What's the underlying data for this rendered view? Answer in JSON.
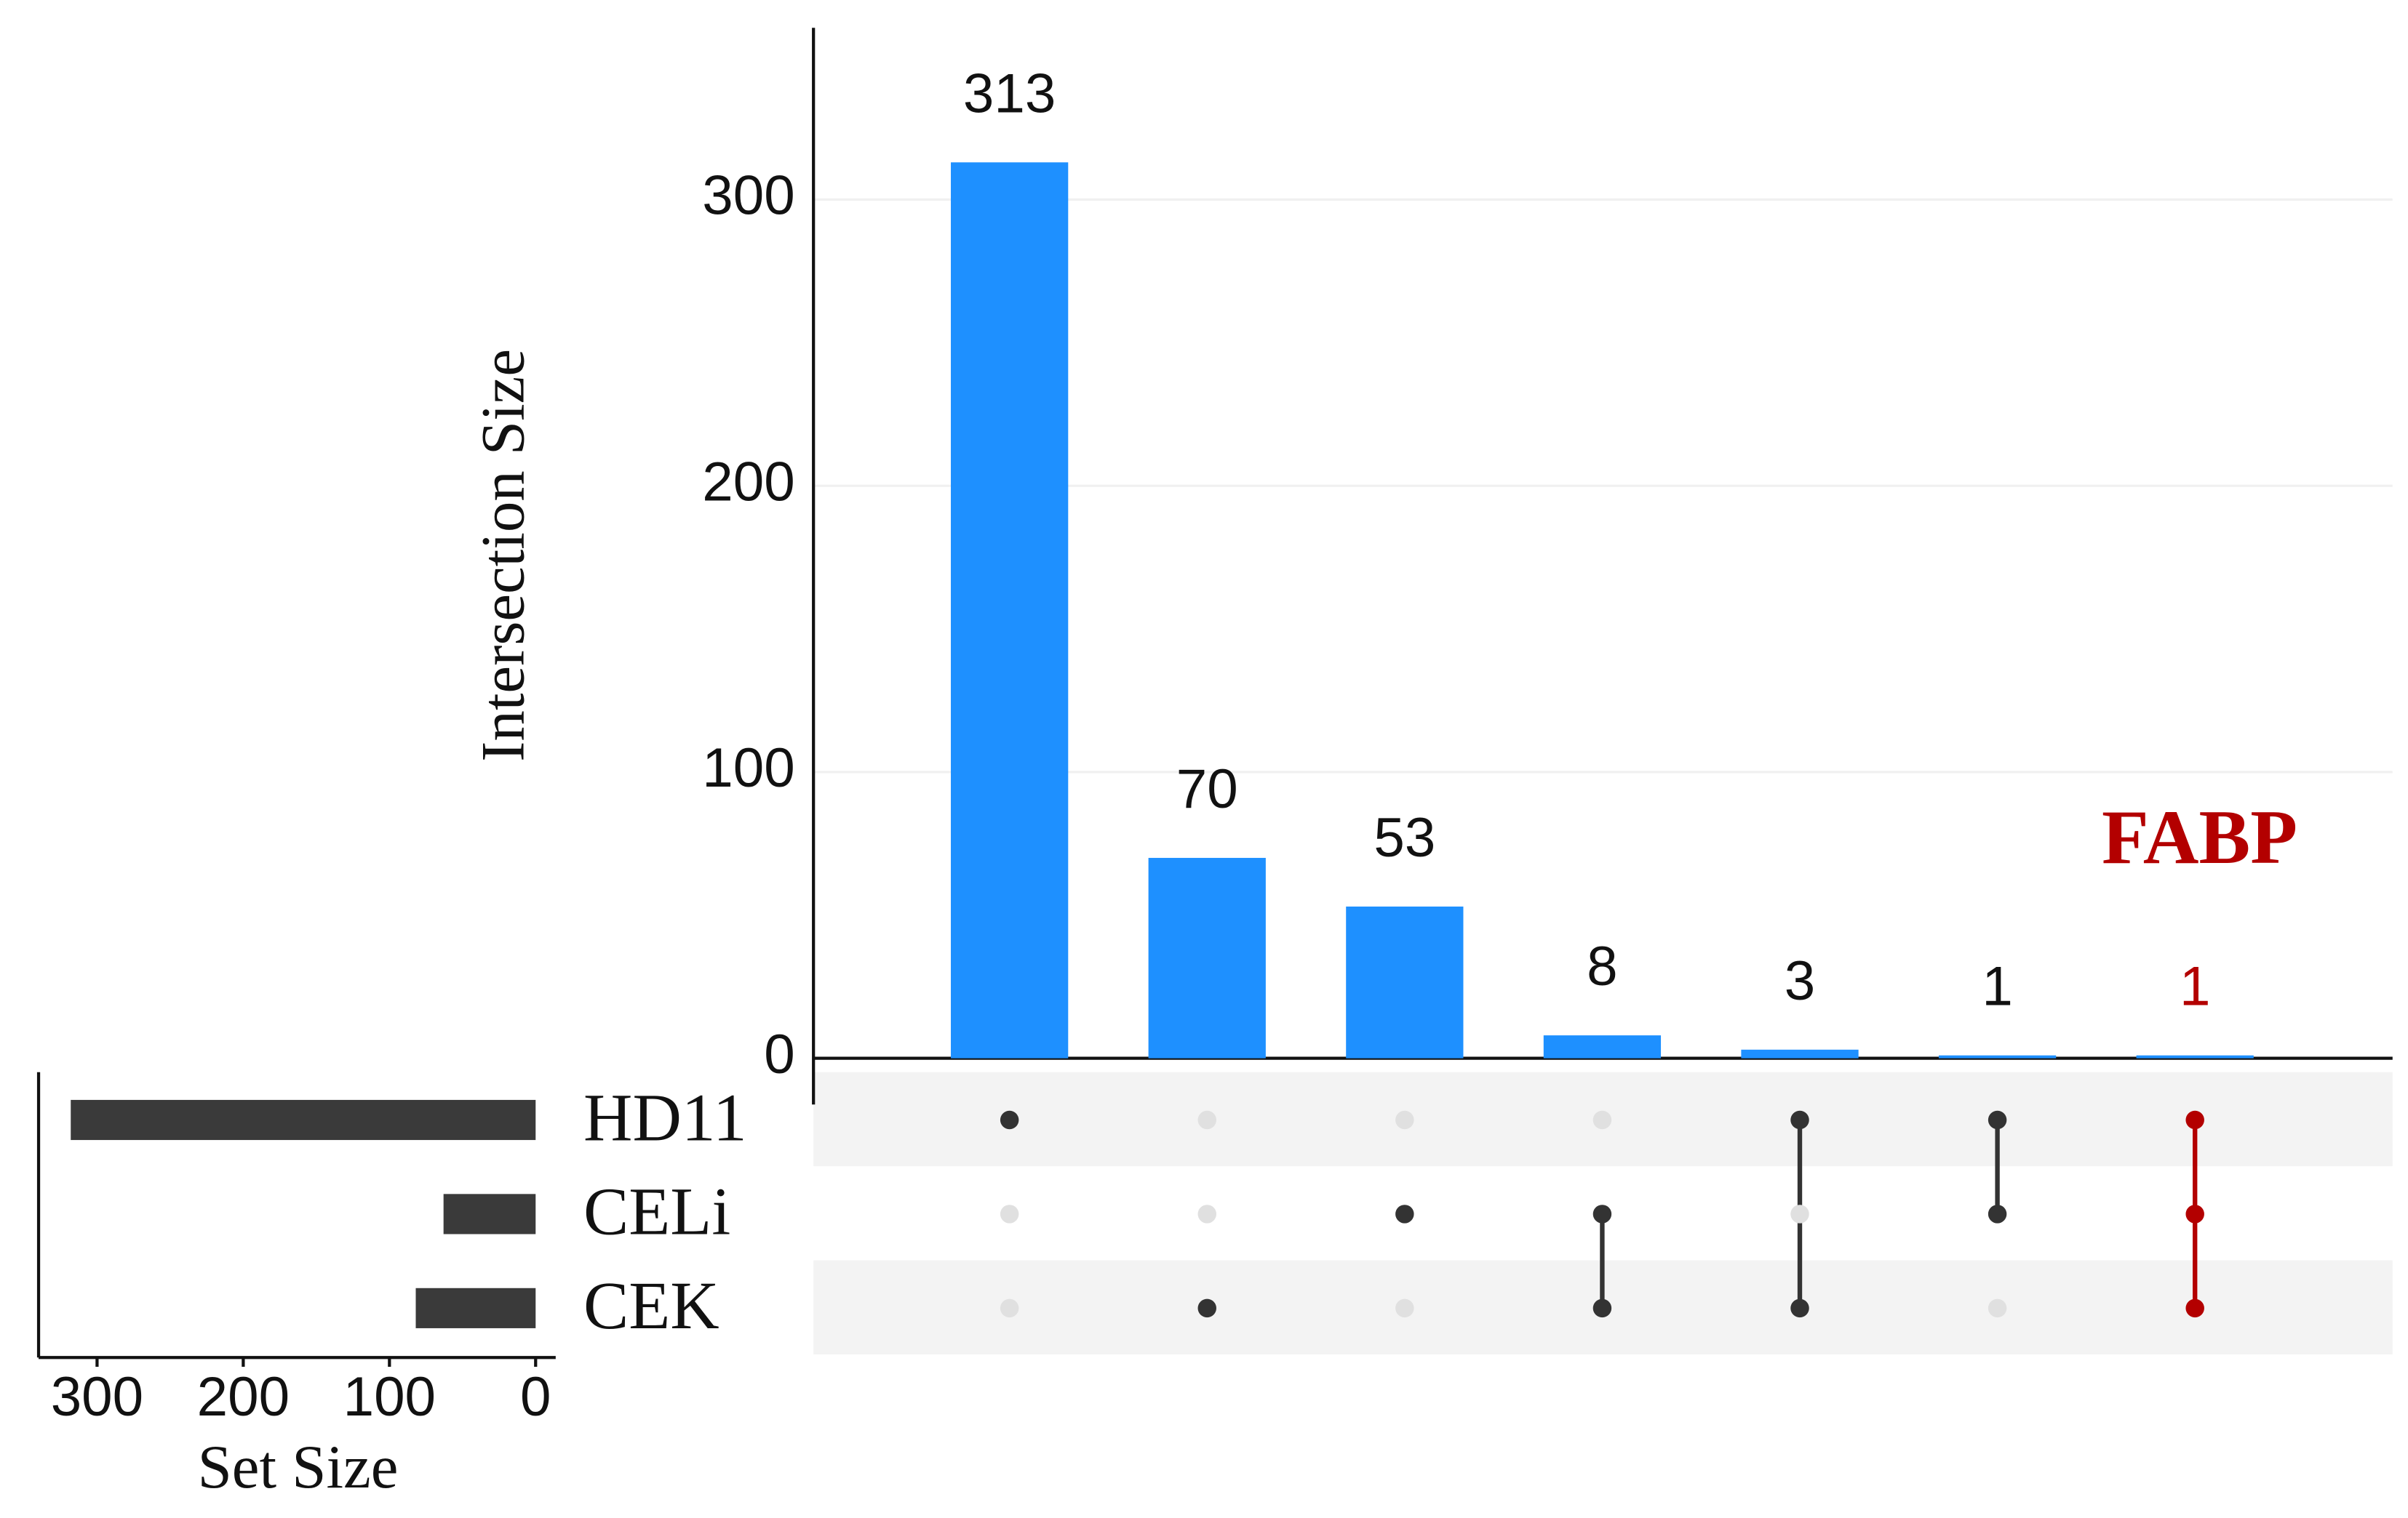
{
  "chart_data": {
    "type": "upset",
    "y_label": "Intersection Size",
    "x_label": "Set Size",
    "annotation": "FABP",
    "values": [
      313,
      70,
      53,
      8,
      3,
      1,
      1
    ],
    "color": "#1e90ff",
    "highlight_color": "#b30000",
    "dot_color": "#333333",
    "inactive_dot_color": "#e0e0e0",
    "set_bar_color": "#3a3a3a",
    "highlight": [
      false,
      false,
      false,
      false,
      false,
      false,
      true
    ],
    "ylim": [
      0,
      360
    ],
    "yticks": [
      0,
      100,
      200,
      300
    ],
    "grid": true,
    "sets": [
      "HD11",
      "CELi",
      "CEK"
    ],
    "set_sizes": [
      318,
      63,
      82
    ],
    "xlim": [
      0,
      340
    ],
    "xticks": [
      300,
      200,
      100,
      0
    ],
    "matrix": [
      [
        true,
        false,
        false,
        false,
        true,
        true,
        true
      ],
      [
        false,
        false,
        true,
        true,
        false,
        true,
        true
      ],
      [
        false,
        true,
        false,
        true,
        true,
        false,
        true
      ]
    ]
  }
}
